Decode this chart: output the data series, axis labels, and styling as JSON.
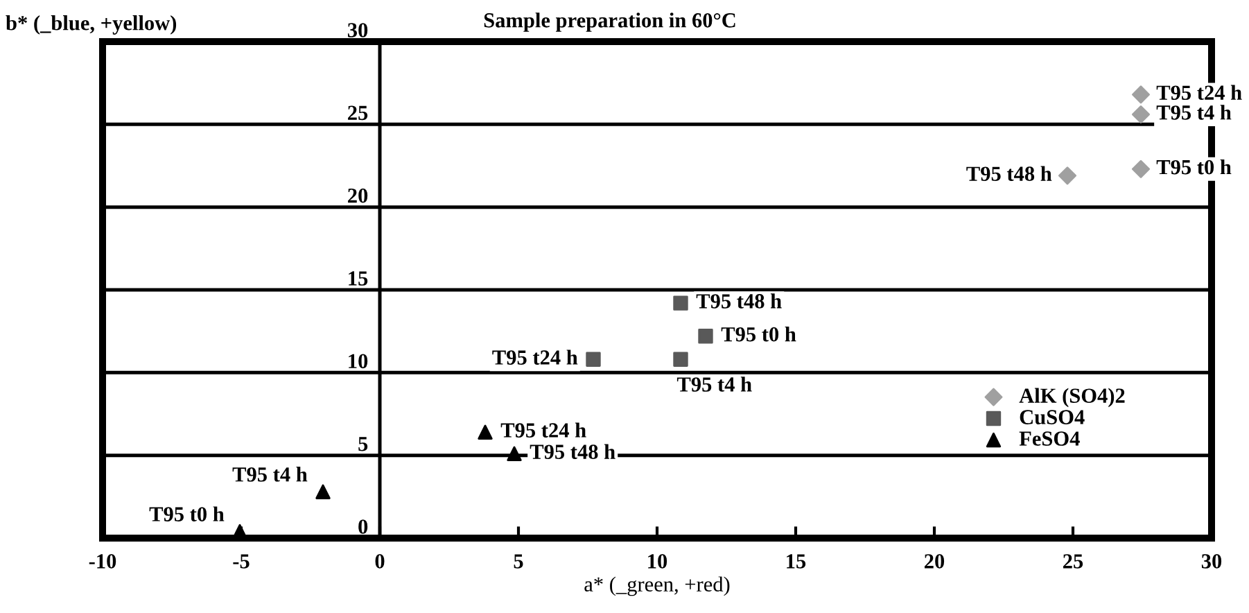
{
  "chart_data": {
    "type": "scatter",
    "title": "Sample preparation in 60°C",
    "xlabel": "a* (_green, +red)",
    "ylabel": "b* (_blue, +yellow)",
    "xlim": [
      -10,
      30
    ],
    "ylim": [
      0,
      30
    ],
    "xticks": [
      -10,
      -5,
      0,
      5,
      10,
      15,
      20,
      25,
      30
    ],
    "yticks": [
      0,
      5,
      10,
      15,
      20,
      25,
      30
    ],
    "grid": "y",
    "legend": "right",
    "series": [
      {
        "name": "AlK (SO4)2",
        "color": "#a0a0a0",
        "marker": "diamond",
        "x": [
          27.45,
          27.45,
          24.8,
          27.45
        ],
        "values": [
          26.8,
          25.6,
          21.9,
          22.3
        ]
      },
      {
        "name": "CuSO4",
        "color": "#595959",
        "marker": "square",
        "x": [
          10.85,
          11.75,
          7.7,
          10.85
        ],
        "values": [
          14.2,
          12.2,
          10.8,
          10.8
        ]
      },
      {
        "name": "FeSO4",
        "color": "#000000",
        "marker": "triangle",
        "x": [
          3.8,
          4.85,
          -2.05,
          -5.05
        ],
        "values": [
          6.4,
          5.1,
          2.8,
          0.4
        ]
      }
    ],
    "annotations": [
      {
        "text": "T95 t24 h",
        "x": 27.45,
        "y": 26.8
      },
      {
        "text": "T95 t4 h",
        "x": 27.45,
        "y": 25.6
      },
      {
        "text": "T95 t48 h",
        "x": 24.8,
        "y": 21.9
      },
      {
        "text": "T95 t0 h",
        "x": 27.45,
        "y": 22.3
      },
      {
        "text": "T95 t48 h",
        "x": 10.85,
        "y": 14.2
      },
      {
        "text": "T95 t0 h",
        "x": 11.75,
        "y": 12.2
      },
      {
        "text": "T95 t24 h",
        "x": 7.7,
        "y": 10.8
      },
      {
        "text": "T95 t4 h",
        "x": 10.85,
        "y": 10.8
      },
      {
        "text": "T95 t24 h",
        "x": 3.8,
        "y": 6.4
      },
      {
        "text": "T95 t48 h",
        "x": 4.85,
        "y": 5.1
      },
      {
        "text": "T95 t4 h",
        "x": -2.05,
        "y": 2.8
      },
      {
        "text": "T95 t0 h",
        "x": -5.05,
        "y": 0.4
      }
    ]
  }
}
